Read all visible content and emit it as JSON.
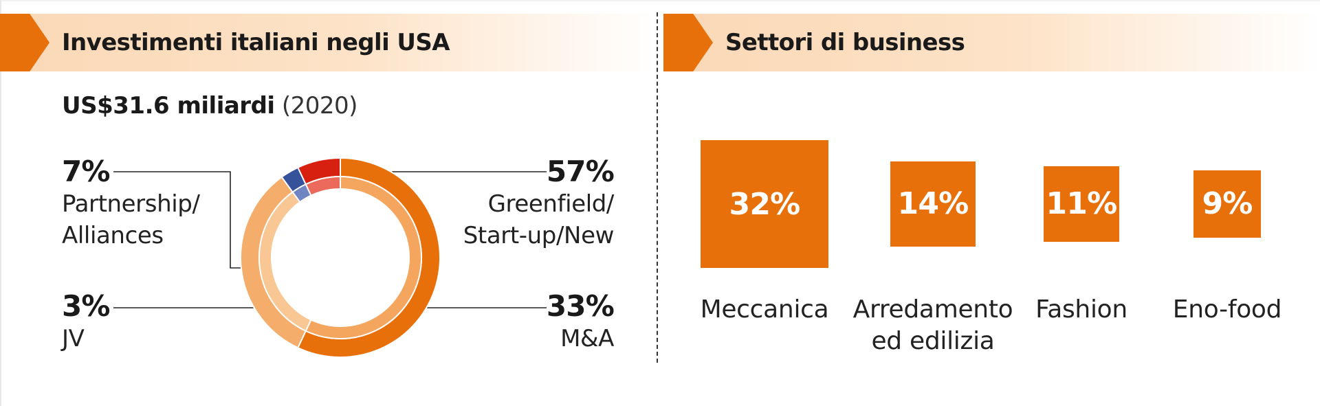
{
  "left_panel": {
    "title": "Investimenti italiani negli USA",
    "total_amount": "US$31.6 miliardi",
    "total_year": "(2020)"
  },
  "right_panel": {
    "title": "Settori di business"
  },
  "chart_data": [
    {
      "type": "pie",
      "style": "donut",
      "title": "Investimenti italiani negli USA",
      "subtitle": "US$31.6 miliardi (2020)",
      "slices": [
        {
          "label": "Greenfield/ Start-up/New",
          "value": 57,
          "pct_label": "57%",
          "color": "#e8700b",
          "inner_color": "#f4a55e"
        },
        {
          "label": "M&A",
          "value": 33,
          "pct_label": "33%",
          "color": "#f4ad6a",
          "inner_color": "#f8c794"
        },
        {
          "label": "JV",
          "value": 3,
          "pct_label": "3%",
          "color": "#35529a",
          "inner_color": "#6f86c2"
        },
        {
          "label": "Partnership/ Alliances",
          "value": 7,
          "pct_label": "7%",
          "color": "#d7200f",
          "inner_color": "#ec6a5b"
        }
      ]
    },
    {
      "type": "bar",
      "style": "proportional-squares",
      "title": "Settori di business",
      "categories": [
        "Meccanica",
        "Arredamento ed edilizia",
        "Fashion",
        "Eno-food"
      ],
      "category_lines": [
        [
          "Meccanica"
        ],
        [
          "Arredamento",
          "ed edilizia"
        ],
        [
          "Fashion"
        ],
        [
          "Eno-food"
        ]
      ],
      "values": [
        32,
        14,
        11,
        9
      ],
      "value_labels": [
        "32%",
        "14%",
        "11%",
        "9%"
      ],
      "color": "#e8700b"
    }
  ],
  "donut_labels": {
    "partnership": {
      "pct": "7%",
      "line1": "Partnership/",
      "line2": "Alliances"
    },
    "jv": {
      "pct": "3%",
      "line1": "JV"
    },
    "greenfield": {
      "pct": "57%",
      "line1": "Greenfield/",
      "line2": "Start-up/New"
    },
    "ma": {
      "pct": "33%",
      "line1": "M&A"
    }
  }
}
